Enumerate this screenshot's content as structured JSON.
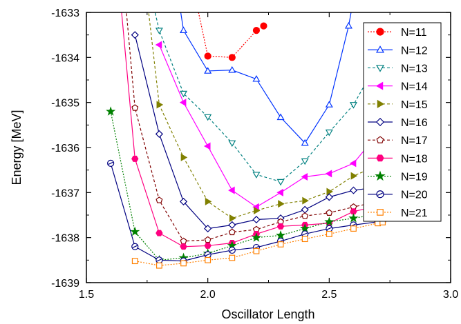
{
  "chart_data": {
    "type": "line",
    "title": "",
    "xlabel": "Oscillator Length",
    "ylabel": "Energy [MeV]",
    "xlim": [
      1.5,
      3.0
    ],
    "ylim": [
      -1639,
      -1633
    ],
    "x_ticks": [
      1.5,
      2.0,
      2.5,
      3.0
    ],
    "x_tick_labels": [
      "1.5",
      "2.0",
      "2.5",
      "3.0"
    ],
    "y_ticks": [
      -1639,
      -1638,
      -1637,
      -1636,
      -1635,
      -1634,
      -1633
    ],
    "y_tick_labels": [
      "-1639",
      "-1638",
      "-1637",
      "-1636",
      "-1635",
      "-1634",
      "-1633"
    ],
    "grid": false,
    "legend_position": "right",
    "series": [
      {
        "name": "N=11",
        "color": "#ff0000",
        "marker": "circle-filled",
        "dash": "dotted",
        "points": [
          [
            1.95,
            -1632.7
          ],
          [
            2.0,
            -1633.97
          ],
          [
            2.1,
            -1634.0
          ],
          [
            2.2,
            -1633.4
          ],
          [
            2.23,
            -1633.3
          ]
        ]
      },
      {
        "name": "N=12",
        "color": "#0033ff",
        "marker": "triangle-up-open",
        "dash": "solid",
        "points": [
          [
            1.88,
            -1632.7
          ],
          [
            1.9,
            -1633.4
          ],
          [
            2.0,
            -1634.3
          ],
          [
            2.1,
            -1634.28
          ],
          [
            2.2,
            -1634.48
          ],
          [
            2.3,
            -1635.33
          ],
          [
            2.4,
            -1635.9
          ],
          [
            2.5,
            -1635.05
          ],
          [
            2.58,
            -1633.3
          ],
          [
            2.6,
            -1632.7
          ]
        ]
      },
      {
        "name": "N=13",
        "color": "#008080",
        "marker": "triangle-down-open",
        "dash": "dashed",
        "points": [
          [
            1.77,
            -1632.7
          ],
          [
            1.8,
            -1633.4
          ],
          [
            1.9,
            -1634.8
          ],
          [
            2.0,
            -1635.32
          ],
          [
            2.1,
            -1635.9
          ],
          [
            2.2,
            -1636.6
          ],
          [
            2.3,
            -1636.76
          ],
          [
            2.4,
            -1636.3
          ],
          [
            2.5,
            -1635.66
          ],
          [
            2.6,
            -1635.05
          ],
          [
            2.7,
            -1634.1
          ],
          [
            2.72,
            -1633.9
          ]
        ]
      },
      {
        "name": "N=14",
        "color": "#ff00ff",
        "marker": "triangle-left-filled",
        "dash": "solid",
        "points": [
          [
            1.8,
            -1633.72
          ],
          [
            1.9,
            -1635.0
          ],
          [
            2.0,
            -1635.97
          ],
          [
            2.1,
            -1636.95
          ],
          [
            2.2,
            -1637.32
          ],
          [
            2.3,
            -1637.0
          ],
          [
            2.4,
            -1636.65
          ],
          [
            2.5,
            -1636.58
          ],
          [
            2.6,
            -1636.35
          ],
          [
            2.7,
            -1635.7
          ],
          [
            2.72,
            -1635.6
          ]
        ]
      },
      {
        "name": "N=15",
        "color": "#808000",
        "marker": "triangle-right-filled",
        "dash": "dashed",
        "points": [
          [
            1.75,
            -1632.7
          ],
          [
            1.8,
            -1635.05
          ],
          [
            1.9,
            -1636.22
          ],
          [
            2.0,
            -1637.2
          ],
          [
            2.1,
            -1637.57
          ],
          [
            2.2,
            -1637.4
          ],
          [
            2.3,
            -1637.25
          ],
          [
            2.4,
            -1637.18
          ],
          [
            2.5,
            -1636.98
          ],
          [
            2.6,
            -1636.63
          ],
          [
            2.7,
            -1636.4
          ],
          [
            2.72,
            -1636.3
          ]
        ]
      },
      {
        "name": "N=16",
        "color": "#000080",
        "marker": "diamond-open",
        "dash": "solid",
        "points": [
          [
            1.7,
            -1633.5
          ],
          [
            1.8,
            -1635.7
          ],
          [
            1.9,
            -1637.2
          ],
          [
            2.0,
            -1637.8
          ],
          [
            2.1,
            -1637.72
          ],
          [
            2.2,
            -1637.6
          ],
          [
            2.3,
            -1637.57
          ],
          [
            2.4,
            -1637.38
          ],
          [
            2.5,
            -1637.1
          ],
          [
            2.6,
            -1636.95
          ],
          [
            2.7,
            -1636.88
          ],
          [
            2.72,
            -1636.85
          ]
        ]
      },
      {
        "name": "N=17",
        "color": "#800000",
        "marker": "pentagon-open",
        "dash": "dashed",
        "points": [
          [
            1.66,
            -1632.7
          ],
          [
            1.7,
            -1635.12
          ],
          [
            1.8,
            -1637.17
          ],
          [
            1.9,
            -1638.08
          ],
          [
            2.0,
            -1638.05
          ],
          [
            2.1,
            -1637.88
          ],
          [
            2.2,
            -1637.82
          ],
          [
            2.3,
            -1637.65
          ],
          [
            2.4,
            -1637.52
          ],
          [
            2.5,
            -1637.45
          ],
          [
            2.6,
            -1637.32
          ],
          [
            2.7,
            -1637.2
          ],
          [
            2.72,
            -1637.18
          ]
        ]
      },
      {
        "name": "N=18",
        "color": "#ff0080",
        "marker": "hexagon-filled",
        "dash": "solid",
        "points": [
          [
            1.64,
            -1632.7
          ],
          [
            1.7,
            -1636.25
          ],
          [
            1.8,
            -1637.9
          ],
          [
            1.9,
            -1638.2
          ],
          [
            2.0,
            -1638.18
          ],
          [
            2.1,
            -1638.12
          ],
          [
            2.2,
            -1637.92
          ],
          [
            2.3,
            -1637.75
          ],
          [
            2.4,
            -1637.72
          ],
          [
            2.5,
            -1637.68
          ],
          [
            2.6,
            -1637.42
          ],
          [
            2.7,
            -1637.3
          ],
          [
            2.72,
            -1637.28
          ]
        ]
      },
      {
        "name": "N=19",
        "color": "#008000",
        "marker": "star-filled",
        "dash": "dotted",
        "points": [
          [
            1.6,
            -1635.2
          ],
          [
            1.7,
            -1637.87
          ],
          [
            1.8,
            -1638.5
          ],
          [
            1.9,
            -1638.45
          ],
          [
            2.0,
            -1638.35
          ],
          [
            2.1,
            -1638.18
          ],
          [
            2.2,
            -1638.0
          ],
          [
            2.3,
            -1637.95
          ],
          [
            2.4,
            -1637.8
          ],
          [
            2.5,
            -1637.65
          ],
          [
            2.6,
            -1637.57
          ],
          [
            2.7,
            -1637.48
          ],
          [
            2.72,
            -1637.46
          ]
        ]
      },
      {
        "name": "N=20",
        "color": "#000080",
        "marker": "circle-line-open",
        "dash": "solid",
        "points": [
          [
            1.6,
            -1636.35
          ],
          [
            1.7,
            -1638.2
          ],
          [
            1.8,
            -1638.5
          ],
          [
            1.9,
            -1638.52
          ],
          [
            2.0,
            -1638.38
          ],
          [
            2.1,
            -1638.28
          ],
          [
            2.2,
            -1638.22
          ],
          [
            2.3,
            -1638.08
          ],
          [
            2.4,
            -1637.92
          ],
          [
            2.5,
            -1637.8
          ],
          [
            2.6,
            -1637.72
          ],
          [
            2.7,
            -1637.65
          ],
          [
            2.72,
            -1637.63
          ]
        ]
      },
      {
        "name": "N=21",
        "color": "#ff8000",
        "marker": "square-open",
        "dash": "dotted",
        "points": [
          [
            1.7,
            -1638.52
          ],
          [
            1.8,
            -1638.62
          ],
          [
            1.9,
            -1638.57
          ],
          [
            2.0,
            -1638.5
          ],
          [
            2.1,
            -1638.45
          ],
          [
            2.2,
            -1638.3
          ],
          [
            2.3,
            -1638.15
          ],
          [
            2.4,
            -1638.03
          ],
          [
            2.5,
            -1637.92
          ],
          [
            2.6,
            -1637.8
          ],
          [
            2.7,
            -1637.68
          ],
          [
            2.72,
            -1637.66
          ]
        ]
      }
    ]
  }
}
